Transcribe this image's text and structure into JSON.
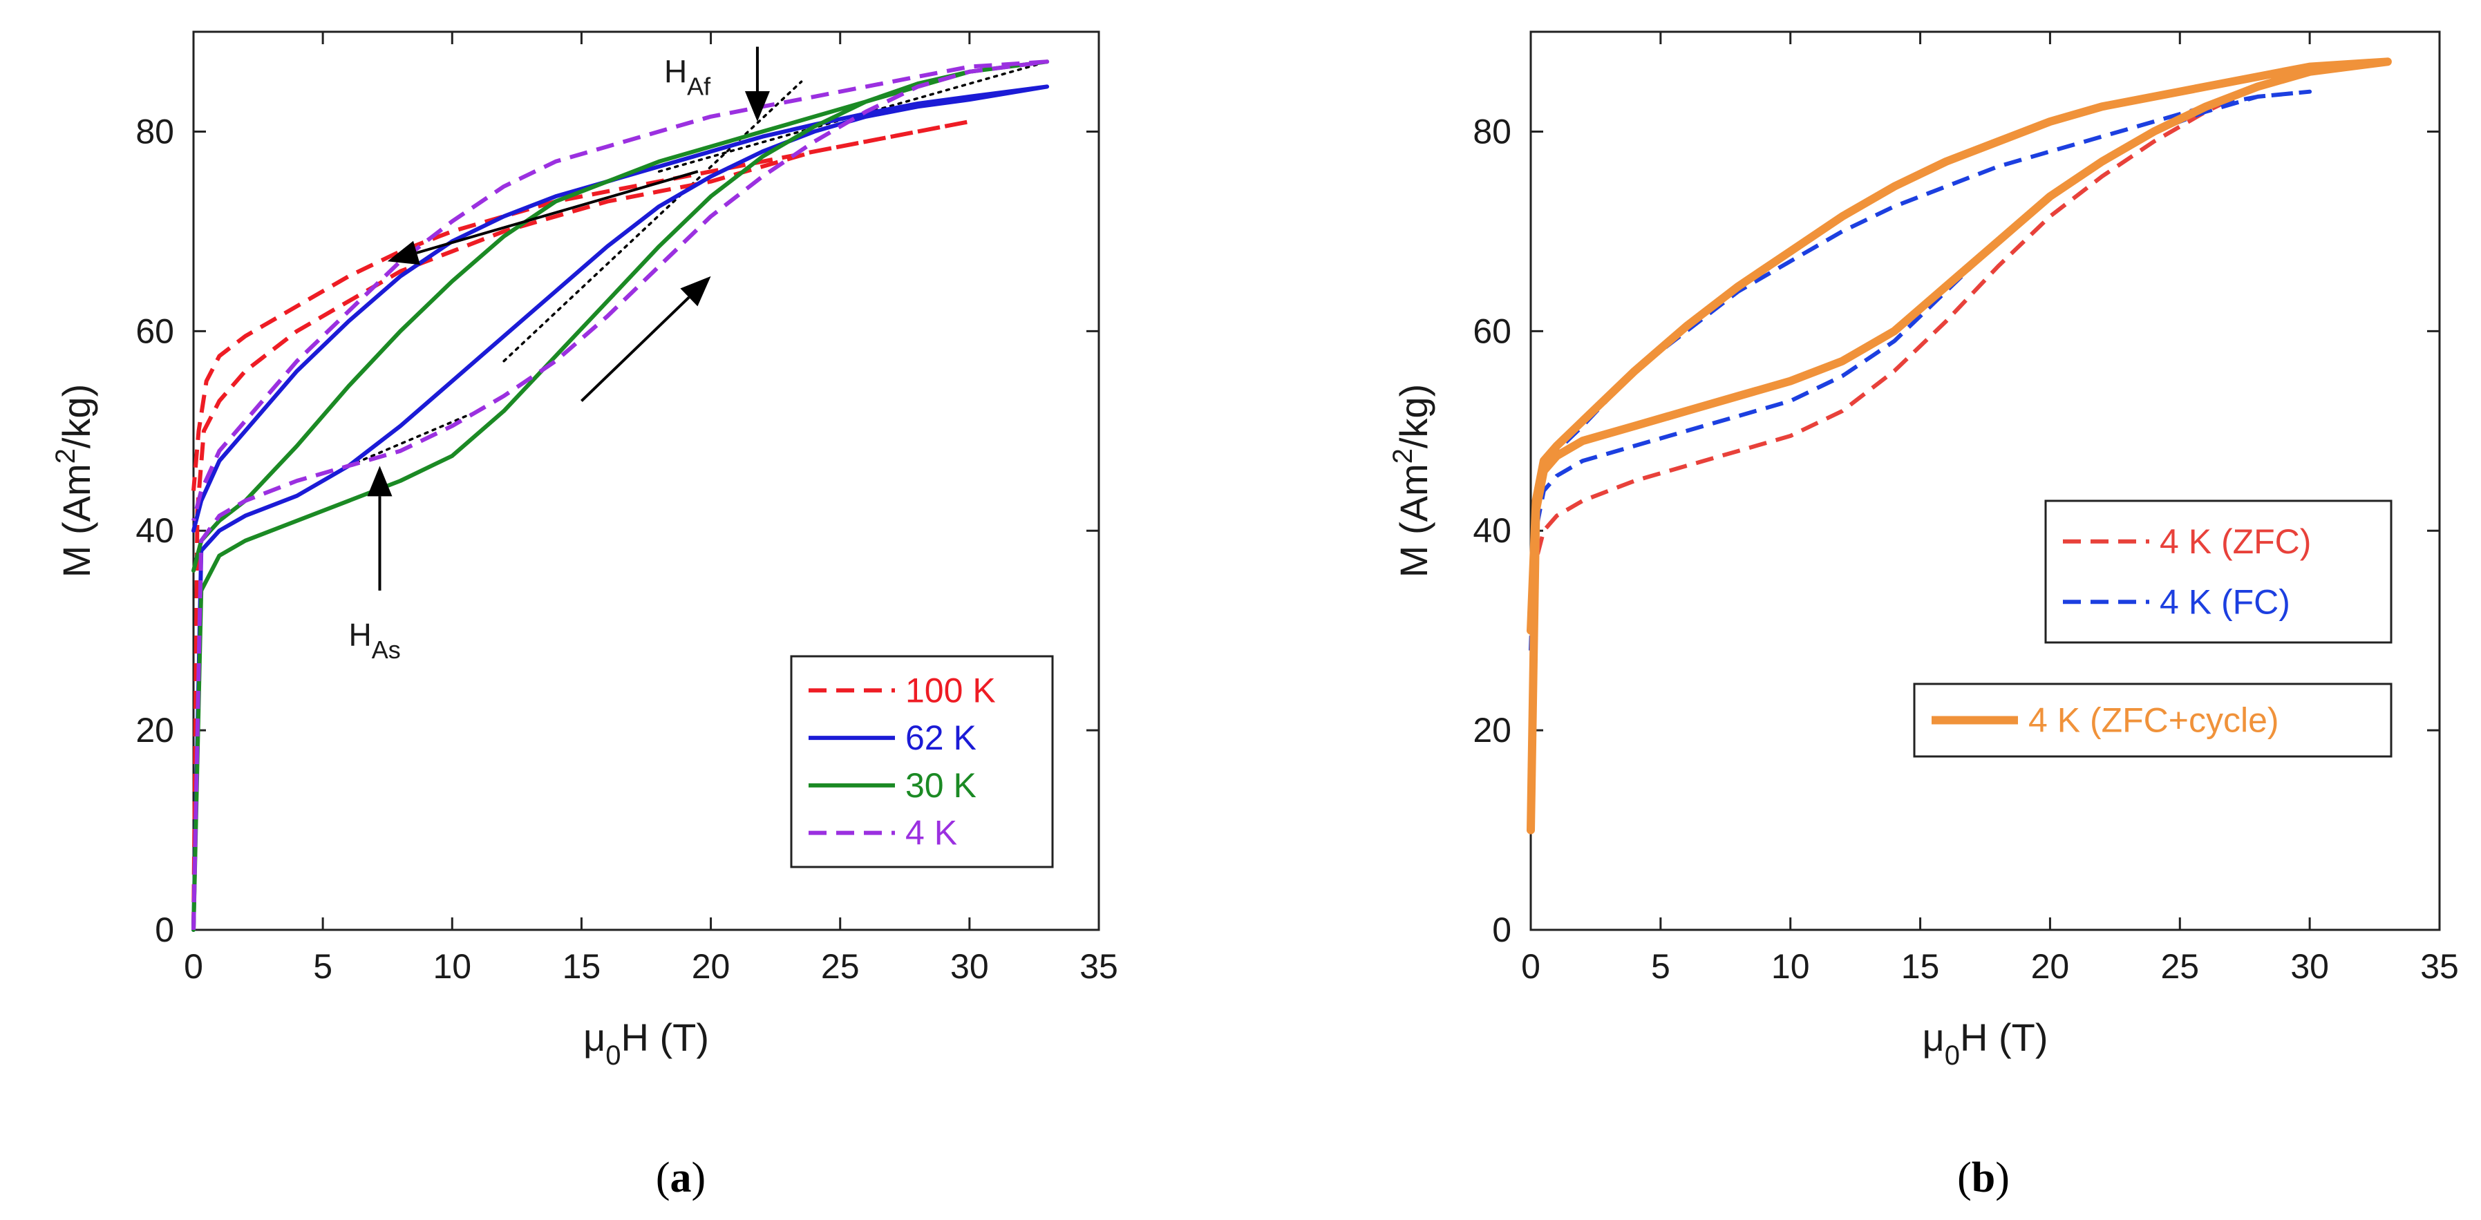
{
  "chart_data": [
    {
      "panel_label": "(a)",
      "panel_letter": "a",
      "type": "line",
      "xlabel": "μ0H (T)",
      "xlabel_parts": {
        "main": "μ",
        "sub": "0",
        "rest": "H (T)"
      },
      "ylabel": "M (Am2/kg)",
      "ylabel_parts": {
        "main": "M (Am",
        "sup": "2",
        "rest": "/kg)"
      },
      "xlim": [
        0,
        35
      ],
      "ylim": [
        0,
        90
      ],
      "xticks": [
        0,
        5,
        10,
        15,
        20,
        25,
        30,
        35
      ],
      "yticks": [
        0,
        20,
        40,
        60,
        80
      ],
      "xtick_labels": [
        "0",
        "5",
        "10",
        "15",
        "20",
        "25",
        "30",
        "35"
      ],
      "ytick_labels": [
        "0",
        "20",
        "40",
        "60",
        "80"
      ],
      "legend_position": "bottom-right",
      "series": [
        {
          "name": "100 K",
          "color": "#ee1c24",
          "dash": "dashed",
          "x": [
            0,
            0.15,
            0.4,
            1,
            2,
            4,
            6,
            8,
            10,
            12,
            14,
            16,
            18,
            20,
            22,
            24,
            26,
            28,
            30,
            28,
            26,
            24,
            22,
            20,
            18,
            16,
            14,
            12,
            10,
            8,
            6,
            4,
            2,
            1,
            0.5,
            0.2,
            0
          ],
          "y": [
            0,
            42,
            50,
            53,
            56,
            60,
            63,
            66,
            68,
            70,
            71.5,
            73,
            74,
            75,
            76.5,
            78,
            79,
            80,
            81,
            80,
            79,
            78,
            77,
            76,
            75,
            74,
            73,
            71.5,
            70,
            68,
            65.5,
            62.5,
            59.5,
            57.5,
            55,
            50,
            44
          ]
        },
        {
          "name": "62 K",
          "color": "#1b1bd6",
          "dash": "solid",
          "x": [
            0,
            0.3,
            1,
            2,
            4,
            6,
            8,
            10,
            12,
            14,
            16,
            18,
            20,
            22,
            24,
            26,
            28,
            30,
            33,
            30,
            28,
            26,
            24,
            22,
            20,
            18,
            16,
            14,
            12,
            10,
            8,
            6,
            4,
            2,
            1,
            0.3,
            0
          ],
          "y": [
            0,
            38,
            40,
            41.5,
            43.5,
            46.5,
            50.5,
            55,
            59.5,
            64,
            68.5,
            72.5,
            75.5,
            78,
            80,
            81.5,
            82.5,
            83.2,
            84.5,
            83.5,
            82.8,
            81.8,
            80.7,
            79.5,
            78,
            76.5,
            75,
            73.5,
            71.5,
            69,
            65.5,
            61,
            56,
            50,
            47,
            43,
            40
          ]
        },
        {
          "name": "30 K",
          "color": "#1b8a24",
          "dash": "solid",
          "x": [
            0,
            0.3,
            1,
            2,
            4,
            6,
            8,
            10,
            12,
            14,
            16,
            18,
            20,
            22,
            24,
            26,
            28,
            30,
            33,
            30,
            28,
            26,
            24,
            22,
            20,
            18,
            16,
            14,
            12,
            10,
            8,
            6,
            4,
            2,
            1,
            0.3,
            0
          ],
          "y": [
            0,
            34,
            37.5,
            39,
            41,
            43,
            45,
            47.5,
            52,
            57.5,
            63,
            68.5,
            73.5,
            77.5,
            80.5,
            83,
            84.8,
            86,
            87,
            86,
            84.5,
            83,
            81.5,
            80,
            78.5,
            77,
            75,
            73,
            69.5,
            65,
            60,
            54.5,
            48.5,
            43,
            41,
            39,
            36
          ]
        },
        {
          "name": "4 K",
          "color": "#9b30e0",
          "dash": "dashed",
          "x": [
            0,
            0.3,
            1,
            2,
            4,
            6,
            8,
            10,
            12,
            14,
            16,
            18,
            20,
            22,
            24,
            26,
            28,
            30,
            33,
            30,
            28,
            26,
            24,
            22,
            20,
            18,
            16,
            14,
            12,
            10,
            8,
            6,
            4,
            2,
            1,
            0.3,
            0
          ],
          "y": [
            0,
            39,
            41.5,
            43,
            45,
            46.5,
            48,
            50.5,
            53.5,
            57,
            61.5,
            66.5,
            71.5,
            75.5,
            79,
            82,
            84.5,
            86,
            87,
            86.5,
            85.5,
            84.5,
            83.5,
            82.5,
            81.5,
            80,
            78.5,
            77,
            74.5,
            71,
            67,
            62,
            57,
            51,
            48,
            44,
            41
          ]
        }
      ],
      "annotations": [
        {
          "label": "H_Af",
          "main": "H",
          "sub": "Af",
          "arrow": "down",
          "point": [
            21.8,
            81
          ],
          "arrow_tail": [
            21.8,
            88.5
          ]
        },
        {
          "label": "H_As",
          "main": "H",
          "sub": "As",
          "arrow": "up",
          "point": [
            7.2,
            46.5
          ],
          "arrow_tail": [
            7.2,
            34
          ]
        }
      ],
      "direction_arrows": [
        {
          "from": [
            19.5,
            76
          ],
          "to": [
            7.5,
            67
          ]
        },
        {
          "from": [
            15,
            53
          ],
          "to": [
            20,
            65.5
          ]
        }
      ],
      "tangent_lines": [
        {
          "color": "#000000",
          "x": [
            6,
            11
          ],
          "y": [
            46.5,
            52
          ]
        },
        {
          "color": "#000000",
          "x": [
            12,
            23.5
          ],
          "y": [
            57,
            85
          ]
        },
        {
          "color": "#000000",
          "x": [
            18,
            33
          ],
          "y": [
            76,
            87
          ]
        }
      ]
    },
    {
      "panel_label": "(b)",
      "panel_letter": "b",
      "type": "line",
      "xlabel": "μ0H (T)",
      "xlabel_parts": {
        "main": "μ",
        "sub": "0",
        "rest": "H (T)"
      },
      "ylabel": "M (Am2/kg)",
      "ylabel_parts": {
        "main": "M (Am",
        "sup": "2",
        "rest": "/kg)"
      },
      "xlim": [
        0,
        35
      ],
      "ylim": [
        0,
        90
      ],
      "xticks": [
        0,
        5,
        10,
        15,
        20,
        25,
        30,
        35
      ],
      "yticks": [
        0,
        20,
        40,
        60,
        80
      ],
      "xtick_labels": [
        "0",
        "5",
        "10",
        "15",
        "20",
        "25",
        "30",
        "35"
      ],
      "ytick_labels": [
        "0",
        "20",
        "40",
        "60",
        "80"
      ],
      "legend_position": "center-right",
      "series": [
        {
          "name": "4 K (ZFC)",
          "color": "#e8413a",
          "dash": "dashed",
          "x": [
            0,
            0.2,
            0.5,
            1,
            2,
            4,
            6,
            8,
            10,
            12,
            14,
            16,
            18,
            20,
            22,
            24,
            26,
            28,
            30,
            33,
            30,
            28,
            26,
            24,
            22,
            20,
            18,
            16,
            14,
            12,
            10,
            8,
            6,
            4,
            2,
            1,
            0.5,
            0.2,
            0
          ],
          "y": [
            10,
            37,
            40,
            41.5,
            43,
            45,
            46.5,
            48,
            49.5,
            52,
            56,
            61,
            66.5,
            71.5,
            75.5,
            79,
            82,
            84.5,
            86,
            87,
            86.5,
            85.5,
            84.5,
            83.5,
            82.5,
            81,
            79,
            77,
            74.5,
            71.5,
            68,
            64.5,
            60.5,
            56,
            51,
            48.5,
            47,
            43,
            30
          ]
        },
        {
          "name": "4 K (FC)",
          "color": "#1c3fe0",
          "dash": "dashed",
          "x": [
            0,
            0.2,
            0.5,
            1,
            2,
            4,
            6,
            8,
            10,
            12,
            14,
            16,
            18,
            20,
            22,
            24,
            26,
            28,
            30,
            28,
            26,
            24,
            22,
            20,
            18,
            16,
            14,
            12,
            10,
            8,
            6,
            4,
            2,
            1,
            0.5,
            0.2,
            0
          ],
          "y": [
            10,
            40,
            44,
            45.5,
            47,
            48.5,
            50,
            51.5,
            53,
            55.5,
            59,
            64,
            69,
            73.5,
            77,
            80,
            82,
            83.5,
            84,
            83.5,
            82.5,
            81,
            79.5,
            78,
            76.5,
            74.5,
            72.5,
            70,
            67,
            64,
            60,
            56,
            50.5,
            48,
            46.5,
            43,
            28
          ]
        },
        {
          "name": "4 K (ZFC+cycle)",
          "color": "#f0923a",
          "dash": "solid",
          "x": [
            0,
            0.2,
            0.5,
            1,
            2,
            4,
            6,
            8,
            10,
            12,
            14,
            16,
            18,
            20,
            22,
            24,
            26,
            28,
            30,
            33,
            30,
            28,
            26,
            24,
            22,
            20,
            18,
            16,
            14,
            12,
            10,
            8,
            6,
            4,
            2,
            1,
            0.5,
            0.2,
            0
          ],
          "y": [
            10,
            42,
            46,
            47.5,
            49,
            50.5,
            52,
            53.5,
            55,
            57,
            60,
            64.5,
            69,
            73.5,
            77,
            80,
            82.5,
            84.5,
            86,
            87,
            86.5,
            85.5,
            84.5,
            83.5,
            82.5,
            81,
            79,
            77,
            74.5,
            71.5,
            68,
            64.5,
            60.5,
            56,
            51,
            48.5,
            47,
            43,
            30
          ]
        }
      ]
    }
  ]
}
